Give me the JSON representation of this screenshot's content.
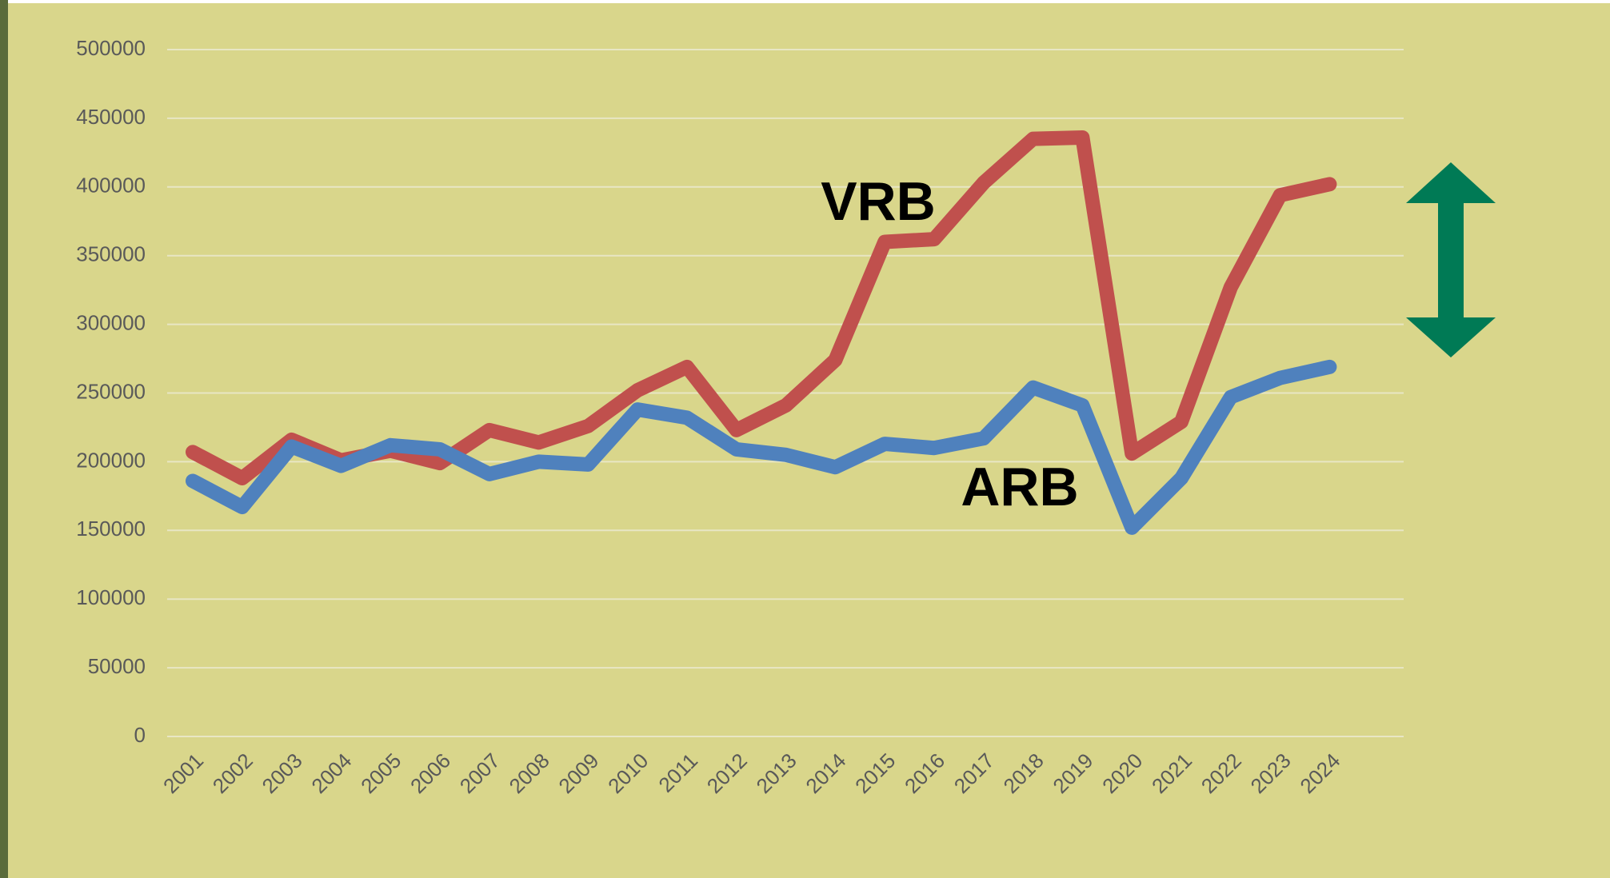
{
  "chart_data": {
    "type": "line",
    "categories": [
      "2001",
      "2002",
      "2003",
      "2004",
      "2005",
      "2006",
      "2007",
      "2008",
      "2009",
      "2010",
      "2011",
      "2012",
      "2013",
      "2014",
      "2015",
      "2016",
      "2017",
      "2018",
      "2019",
      "2020",
      "2021",
      "2022",
      "2023",
      "2024"
    ],
    "series": [
      {
        "name": "VRB",
        "color": "#c0504d",
        "values": [
          207000,
          188000,
          216000,
          201000,
          208000,
          199000,
          223000,
          214000,
          226000,
          252000,
          269000,
          223000,
          241000,
          274000,
          360000,
          362000,
          403000,
          435000,
          436000,
          206000,
          229000,
          327000,
          394000,
          402000
        ]
      },
      {
        "name": "ARB",
        "color": "#4f81bd",
        "values": [
          186000,
          167000,
          211000,
          197000,
          212000,
          209000,
          191000,
          200000,
          198000,
          238000,
          232000,
          209000,
          205000,
          196000,
          213000,
          210000,
          217000,
          254000,
          241000,
          152000,
          188000,
          247000,
          261000,
          269000
        ]
      }
    ],
    "ylim": [
      0,
      500000
    ],
    "yticks": [
      0,
      50000,
      100000,
      150000,
      200000,
      250000,
      300000,
      350000,
      400000,
      450000,
      500000
    ],
    "grid": true
  }
}
